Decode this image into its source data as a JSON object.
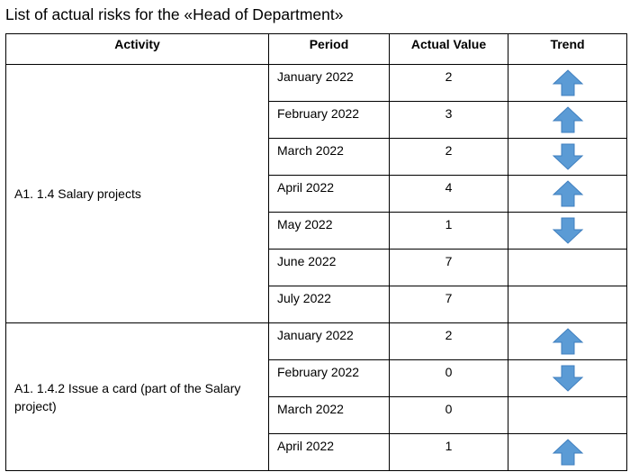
{
  "title": "List of actual risks for the «Head of Department»",
  "columns": {
    "activity": "Activity",
    "period": "Period",
    "value": "Actual Value",
    "trend": "Trend"
  },
  "arrow_color": "#5b9bd5",
  "groups": [
    {
      "activity": "A1. 1.4 Salary projects",
      "rows": [
        {
          "period": "January 2022",
          "value": "2",
          "trend": "up"
        },
        {
          "period": "February 2022",
          "value": "3",
          "trend": "up"
        },
        {
          "period": "March 2022",
          "value": "2",
          "trend": "down"
        },
        {
          "period": "April 2022",
          "value": "4",
          "trend": "up"
        },
        {
          "period": "May 2022",
          "value": "1",
          "trend": "down"
        },
        {
          "period": "June 2022",
          "value": "7",
          "trend": ""
        },
        {
          "period": "July 2022",
          "value": "7",
          "trend": ""
        }
      ]
    },
    {
      "activity": "A1. 1.4.2 Issue a card (part of the Salary project)",
      "rows": [
        {
          "period": "January 2022",
          "value": "2",
          "trend": "up"
        },
        {
          "period": "February 2022",
          "value": "0",
          "trend": "down"
        },
        {
          "period": "March 2022",
          "value": "0",
          "trend": ""
        },
        {
          "period": "April 2022",
          "value": "1",
          "trend": "up"
        }
      ]
    }
  ]
}
